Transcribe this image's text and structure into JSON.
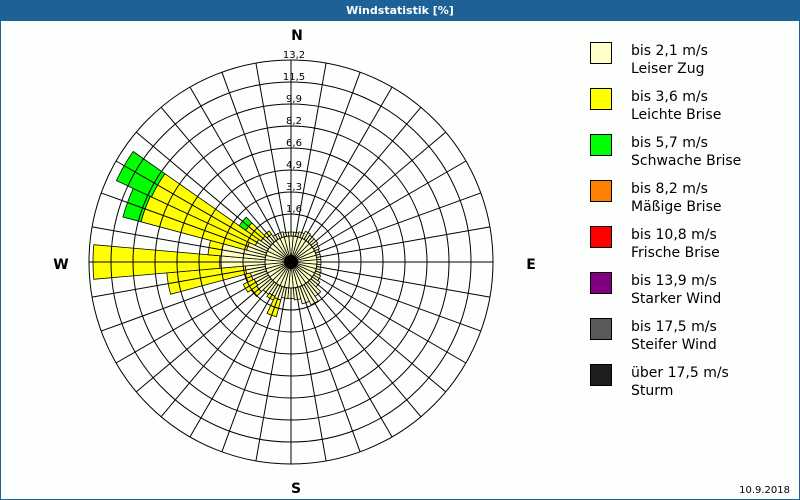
{
  "title": "Windstatistik [%]",
  "date": "10.9.2018",
  "compass": {
    "N": "N",
    "E": "E",
    "S": "S",
    "W": "W"
  },
  "legend": [
    {
      "range": "bis 2,1 m/s",
      "name": "Leiser Zug",
      "color": "#ffffc8"
    },
    {
      "range": "bis 3,6 m/s",
      "name": "Leichte Brise",
      "color": "#ffff00"
    },
    {
      "range": "bis 5,7 m/s",
      "name": "Schwache Brise",
      "color": "#00ff00"
    },
    {
      "range": "bis 8,2 m/s",
      "name": "Mäßige Brise",
      "color": "#ff8000"
    },
    {
      "range": "bis 10,8 m/s",
      "name": "Frische Brise",
      "color": "#ff0000"
    },
    {
      "range": "bis 13,9 m/s",
      "name": "Starker Wind",
      "color": "#800080"
    },
    {
      "range": "bis 17,5 m/s",
      "name": "Steifer Wind",
      "color": "#5a5a5a"
    },
    {
      "range": "über 17,5 m/s",
      "name": "Sturm",
      "color": "#1e1e1e"
    }
  ],
  "chart_data": {
    "type": "polar-stacked-bar",
    "title": "Windstatistik [%]",
    "ring_labels": [
      "1,6",
      "3,3",
      "4,9",
      "6,6",
      "8,2",
      "9,9",
      "11,5",
      "13,2"
    ],
    "rmax": 13.2,
    "sector_width_deg": 10,
    "series_names": [
      "bis 2,1 m/s",
      "bis 3,6 m/s",
      "bis 5,7 m/s"
    ],
    "sectors": [
      {
        "dir": 0,
        "values": [
          0.3,
          0.0,
          0.0
        ]
      },
      {
        "dir": 10,
        "values": [
          0.3,
          0.0,
          0.0
        ]
      },
      {
        "dir": 20,
        "values": [
          0.4,
          0.0,
          0.0
        ]
      },
      {
        "dir": 30,
        "values": [
          0.6,
          0.0,
          0.0
        ]
      },
      {
        "dir": 40,
        "values": [
          0.5,
          0.0,
          0.0
        ]
      },
      {
        "dir": 50,
        "values": [
          0.5,
          0.0,
          0.0
        ]
      },
      {
        "dir": 60,
        "values": [
          0.4,
          0.0,
          0.0
        ]
      },
      {
        "dir": 70,
        "values": [
          0.3,
          0.0,
          0.0
        ]
      },
      {
        "dir": 80,
        "values": [
          0.3,
          0.0,
          0.0
        ]
      },
      {
        "dir": 90,
        "values": [
          0.3,
          0.0,
          0.0
        ]
      },
      {
        "dir": 100,
        "values": [
          0.3,
          0.0,
          0.0
        ]
      },
      {
        "dir": 110,
        "values": [
          0.4,
          0.0,
          0.0
        ]
      },
      {
        "dir": 120,
        "values": [
          0.5,
          0.0,
          0.0
        ]
      },
      {
        "dir": 130,
        "values": [
          0.7,
          0.0,
          0.0
        ]
      },
      {
        "dir": 140,
        "values": [
          1.2,
          0.0,
          0.0
        ]
      },
      {
        "dir": 150,
        "values": [
          1.6,
          0.0,
          0.0
        ]
      },
      {
        "dir": 160,
        "values": [
          1.3,
          0.0,
          0.0
        ]
      },
      {
        "dir": 170,
        "values": [
          0.9,
          0.0,
          0.0
        ]
      },
      {
        "dir": 180,
        "values": [
          0.8,
          0.0,
          0.0
        ]
      },
      {
        "dir": 190,
        "values": [
          0.8,
          0.0,
          0.0
        ]
      },
      {
        "dir": 200,
        "values": [
          1.0,
          1.3,
          0.0
        ]
      },
      {
        "dir": 210,
        "values": [
          0.9,
          0.3,
          0.0
        ]
      },
      {
        "dir": 220,
        "values": [
          1.0,
          0.0,
          0.0
        ]
      },
      {
        "dir": 230,
        "values": [
          1.2,
          0.5,
          0.0
        ]
      },
      {
        "dir": 240,
        "values": [
          1.1,
          0.9,
          0.0
        ]
      },
      {
        "dir": 250,
        "values": [
          1.2,
          0.4,
          0.0
        ]
      },
      {
        "dir": 260,
        "values": [
          1.5,
          5.9,
          0.0
        ]
      },
      {
        "dir": 270,
        "values": [
          3.4,
          9.5,
          0.0
        ]
      },
      {
        "dir": 280,
        "values": [
          3.3,
          1.0,
          0.0
        ]
      },
      {
        "dir": 290,
        "values": [
          1.5,
          8.2,
          1.4
        ]
      },
      {
        "dir": 300,
        "values": [
          1.0,
          8.6,
          2.9
        ]
      },
      {
        "dir": 310,
        "values": [
          0.8,
          1.4,
          0.6
        ]
      },
      {
        "dir": 320,
        "values": [
          0.6,
          0.3,
          0.0
        ]
      },
      {
        "dir": 330,
        "values": [
          0.4,
          0.0,
          0.0
        ]
      },
      {
        "dir": 340,
        "values": [
          0.4,
          0.0,
          0.0
        ]
      },
      {
        "dir": 350,
        "values": [
          0.3,
          0.0,
          0.0
        ]
      }
    ],
    "colors": [
      "#ffffc8",
      "#ffff00",
      "#00ff00"
    ],
    "legend_position": "right",
    "grid": true
  }
}
